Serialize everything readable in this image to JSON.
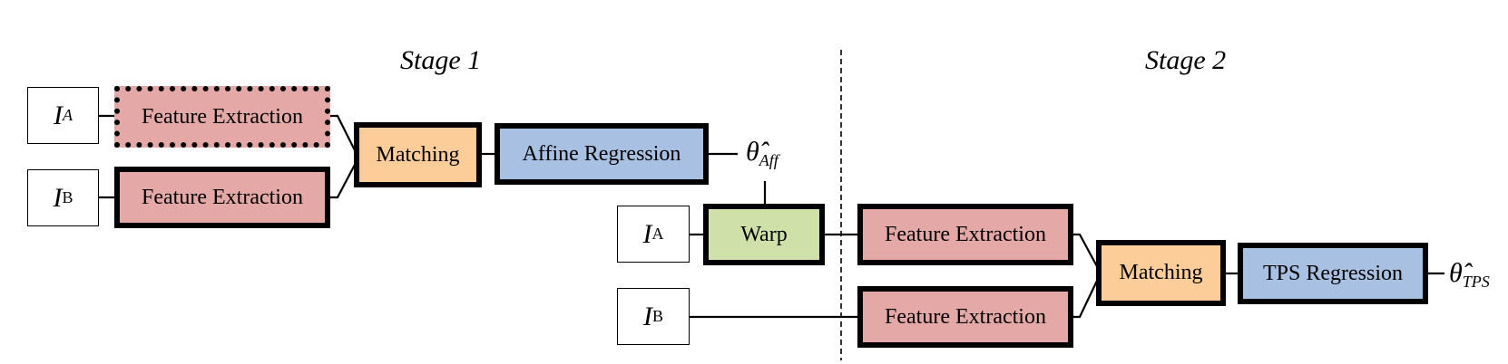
{
  "stage1": {
    "title": "Stage 1"
  },
  "stage2": {
    "title": "Stage 2"
  },
  "stage1_nodes": {
    "input_a": {
      "symbol": "I",
      "subscript": "A"
    },
    "input_b": {
      "symbol": "I",
      "subscript": "B"
    },
    "feature_a": "Feature Extraction",
    "feature_b": "Feature Extraction",
    "matching": "Matching",
    "regression": "Affine Regression",
    "output": {
      "symbol": "θ̂",
      "subscript": "Aff"
    }
  },
  "stage2_nodes": {
    "input_a": {
      "symbol": "I",
      "subscript": "A"
    },
    "input_b": {
      "symbol": "I",
      "subscript": "B"
    },
    "warp": "Warp",
    "feature_a": "Feature Extraction",
    "feature_b": "Feature Extraction",
    "matching": "Matching",
    "regression": "TPS Regression",
    "output": {
      "symbol": "θ̂",
      "subscript": "TPS"
    }
  },
  "colors": {
    "feature_extraction": "#e4a9a7",
    "matching": "#fdcd99",
    "regression": "#a8c1e2",
    "warp": "#cfe0a8"
  }
}
